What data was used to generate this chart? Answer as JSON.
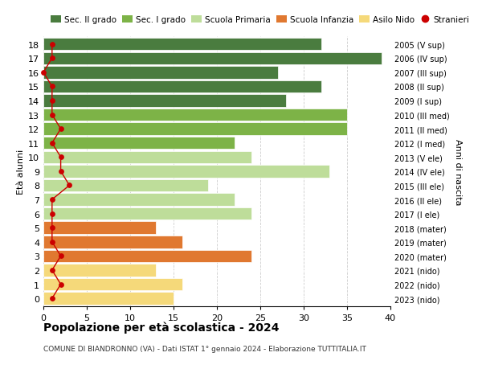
{
  "ages": [
    18,
    17,
    16,
    15,
    14,
    13,
    12,
    11,
    10,
    9,
    8,
    7,
    6,
    5,
    4,
    3,
    2,
    1,
    0
  ],
  "right_labels": [
    "2005 (V sup)",
    "2006 (IV sup)",
    "2007 (III sup)",
    "2008 (II sup)",
    "2009 (I sup)",
    "2010 (III med)",
    "2011 (II med)",
    "2012 (I med)",
    "2013 (V ele)",
    "2014 (IV ele)",
    "2015 (III ele)",
    "2016 (II ele)",
    "2017 (I ele)",
    "2018 (mater)",
    "2019 (mater)",
    "2020 (mater)",
    "2021 (nido)",
    "2022 (nido)",
    "2023 (nido)"
  ],
  "bar_values": [
    32,
    39,
    27,
    32,
    28,
    35,
    35,
    22,
    24,
    33,
    19,
    22,
    24,
    13,
    16,
    24,
    13,
    16,
    15
  ],
  "bar_colors": [
    "#4a7c3f",
    "#4a7c3f",
    "#4a7c3f",
    "#4a7c3f",
    "#4a7c3f",
    "#7db347",
    "#7db347",
    "#7db347",
    "#bedd9a",
    "#bedd9a",
    "#bedd9a",
    "#bedd9a",
    "#bedd9a",
    "#e07830",
    "#e07830",
    "#e07830",
    "#f5d97a",
    "#f5d97a",
    "#f5d97a"
  ],
  "stranieri_values": [
    1,
    1,
    0,
    1,
    1,
    1,
    2,
    1,
    2,
    2,
    3,
    1,
    1,
    1,
    1,
    2,
    1,
    2,
    1
  ],
  "title": "Popolazione per età scolastica - 2024",
  "subtitle": "COMUNE DI BIANDRONNO (VA) - Dati ISTAT 1° gennaio 2024 - Elaborazione TUTTITALIA.IT",
  "ylabel_left": "Età alunni",
  "ylabel_right": "Anni di nascita",
  "xlim": [
    0,
    40
  ],
  "xticks": [
    0,
    5,
    10,
    15,
    20,
    25,
    30,
    35,
    40
  ],
  "legend_items": [
    {
      "label": "Sec. II grado",
      "color": "#4a7c3f"
    },
    {
      "label": "Sec. I grado",
      "color": "#7db347"
    },
    {
      "label": "Scuola Primaria",
      "color": "#bedd9a"
    },
    {
      "label": "Scuola Infanzia",
      "color": "#e07830"
    },
    {
      "label": "Asilo Nido",
      "color": "#f5d97a"
    },
    {
      "label": "Stranieri",
      "color": "#cc0000"
    }
  ],
  "bg_color": "#ffffff",
  "grid_color": "#cccccc",
  "stranieri_line_color": "#cc0000",
  "stranieri_marker_color": "#cc0000"
}
